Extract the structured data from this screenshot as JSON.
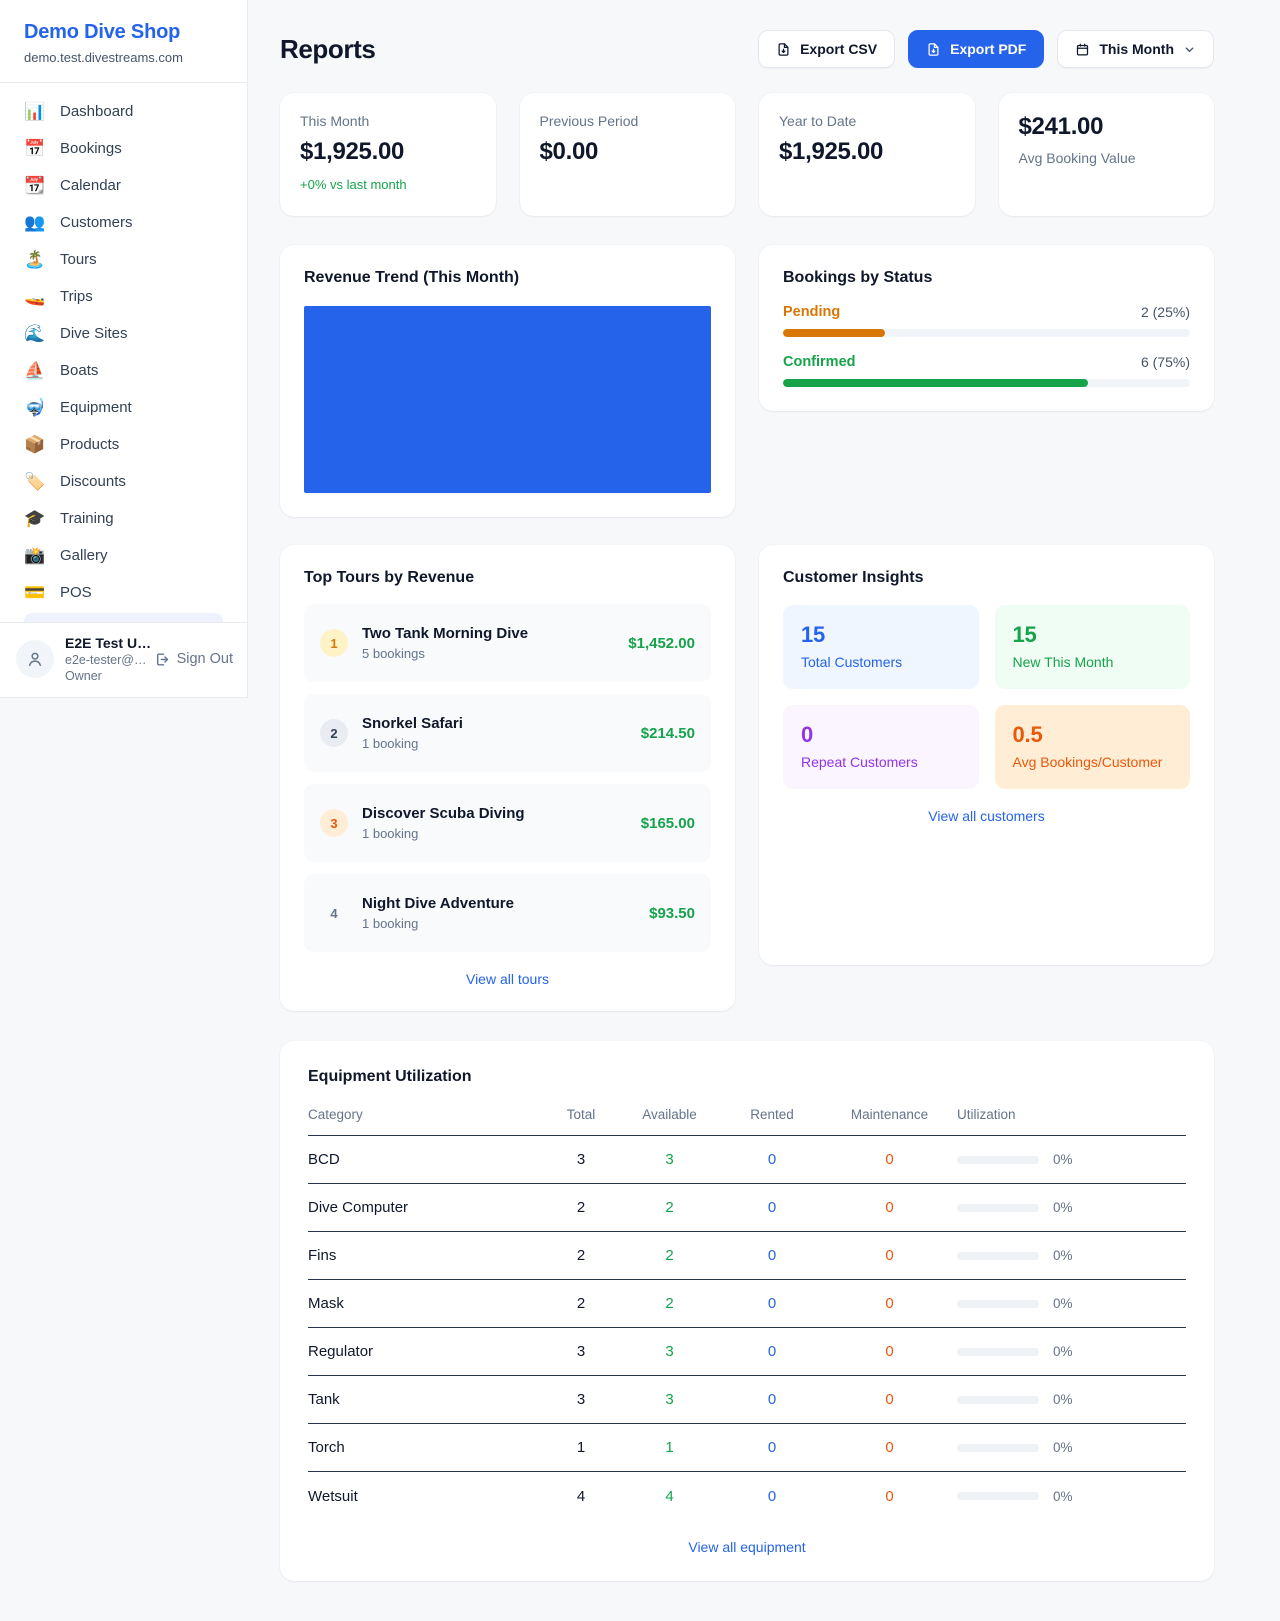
{
  "brand": {
    "name": "Demo Dive Shop",
    "domain": "demo.test.divestreams.com"
  },
  "sidebar": {
    "items": [
      {
        "icon": "📊",
        "label": "Dashboard"
      },
      {
        "icon": "📅",
        "label": "Bookings"
      },
      {
        "icon": "📆",
        "label": "Calendar"
      },
      {
        "icon": "👥",
        "label": "Customers"
      },
      {
        "icon": "🏝️",
        "label": "Tours"
      },
      {
        "icon": "🚤",
        "label": "Trips"
      },
      {
        "icon": "🌊",
        "label": "Dive Sites"
      },
      {
        "icon": "⛵",
        "label": "Boats"
      },
      {
        "icon": "🤿",
        "label": "Equipment"
      },
      {
        "icon": "📦",
        "label": "Products"
      },
      {
        "icon": "🏷️",
        "label": "Discounts"
      },
      {
        "icon": "🎓",
        "label": "Training"
      },
      {
        "icon": "📸",
        "label": "Gallery"
      },
      {
        "icon": "💳",
        "label": "POS"
      }
    ]
  },
  "user": {
    "name": "E2E Test U…",
    "email": "e2e-tester@…",
    "role": "Owner",
    "sign_out": "Sign Out"
  },
  "header": {
    "title": "Reports",
    "export_csv": "Export CSV",
    "export_pdf": "Export PDF",
    "period": "This Month"
  },
  "stats": [
    {
      "label": "This Month",
      "value": "$1,925.00",
      "delta": "+0% vs last month"
    },
    {
      "label": "Previous Period",
      "value": "$0.00"
    },
    {
      "label": "Year to Date",
      "value": "$1,925.00"
    },
    {
      "label": "Avg Booking Value",
      "value": "$241.00"
    }
  ],
  "revenue_trend": {
    "title": "Revenue Trend (This Month)",
    "fill_color": "#2563eb"
  },
  "bookings_by_status": {
    "title": "Bookings by Status",
    "rows": [
      {
        "label": "Pending",
        "value": "2 (25%)",
        "width": "25%",
        "color": "#d97706"
      },
      {
        "label": "Confirmed",
        "value": "6 (75%)",
        "width": "75%",
        "color": "#16a34a"
      }
    ]
  },
  "top_tours": {
    "title": "Top Tours by Revenue",
    "view_all": "View all tours",
    "rows": [
      {
        "rank": "1",
        "name": "Two Tank Morning Dive",
        "bookings": "5 bookings",
        "amount": "$1,452.00",
        "badge_bg": "#fef3c7",
        "badge_color": "#d97706"
      },
      {
        "rank": "2",
        "name": "Snorkel Safari",
        "bookings": "1 booking",
        "amount": "$214.50",
        "badge_bg": "#e9edf3",
        "badge_color": "#334155"
      },
      {
        "rank": "3",
        "name": "Discover Scuba Diving",
        "bookings": "1 booking",
        "amount": "$165.00",
        "badge_bg": "#ffedd5",
        "badge_color": "#ea580c"
      },
      {
        "rank": "4",
        "name": "Night Dive Adventure",
        "bookings": "1 booking",
        "amount": "$93.50",
        "badge_bg": "transparent",
        "badge_color": "#64748b"
      }
    ]
  },
  "customer_insights": {
    "title": "Customer Insights",
    "view_all": "View all customers",
    "tiles": [
      {
        "value": "15",
        "label": "Total Customers",
        "bg": "#eff6ff",
        "color": "#2563eb"
      },
      {
        "value": "15",
        "label": "New This Month",
        "bg": "#f0fdf4",
        "color": "#16a34a"
      },
      {
        "value": "0",
        "label": "Repeat Customers",
        "bg": "#faf5ff",
        "color": "#9333ea"
      },
      {
        "value": "0.5",
        "label": "Avg Bookings/Customer",
        "bg": "#ffedd5",
        "color": "#ea580c"
      }
    ]
  },
  "equipment": {
    "title": "Equipment Utilization",
    "view_all": "View all equipment",
    "columns": [
      "Category",
      "Total",
      "Available",
      "Rented",
      "Maintenance",
      "Utilization"
    ],
    "rows": [
      {
        "category": "BCD",
        "total": "3",
        "available": "3",
        "rented": "0",
        "maintenance": "0",
        "utilization": "0%",
        "bar_width": "0%"
      },
      {
        "category": "Dive Computer",
        "total": "2",
        "available": "2",
        "rented": "0",
        "maintenance": "0",
        "utilization": "0%",
        "bar_width": "0%"
      },
      {
        "category": "Fins",
        "total": "2",
        "available": "2",
        "rented": "0",
        "maintenance": "0",
        "utilization": "0%",
        "bar_width": "0%"
      },
      {
        "category": "Mask",
        "total": "2",
        "available": "2",
        "rented": "0",
        "maintenance": "0",
        "utilization": "0%",
        "bar_width": "0%"
      },
      {
        "category": "Regulator",
        "total": "3",
        "available": "3",
        "rented": "0",
        "maintenance": "0",
        "utilization": "0%",
        "bar_width": "0%"
      },
      {
        "category": "Tank",
        "total": "3",
        "available": "3",
        "rented": "0",
        "maintenance": "0",
        "utilization": "0%",
        "bar_width": "0%"
      },
      {
        "category": "Torch",
        "total": "1",
        "available": "1",
        "rented": "0",
        "maintenance": "0",
        "utilization": "0%",
        "bar_width": "0%"
      },
      {
        "category": "Wetsuit",
        "total": "4",
        "available": "4",
        "rented": "0",
        "maintenance": "0",
        "utilization": "0%",
        "bar_width": "0%"
      }
    ]
  },
  "chart_data": [
    {
      "type": "bar",
      "title": "Revenue Trend (This Month)",
      "categories": [
        "This Month"
      ],
      "values": [
        1925
      ],
      "color": "#2563eb",
      "note": "rendered as a single solid blue bar filling the entire plot area; no axes, gridlines or labels visible"
    },
    {
      "type": "bar",
      "title": "Bookings by Status",
      "categories": [
        "Pending",
        "Confirmed"
      ],
      "values": [
        2,
        6
      ],
      "value_labels": [
        "2 (25%)",
        "6 (75%)"
      ],
      "percentages": [
        25,
        75
      ],
      "colors": [
        "#d97706",
        "#16a34a"
      ],
      "note": "horizontal progress bars"
    },
    {
      "type": "table",
      "title": "Equipment Utilization",
      "columns": [
        "Category",
        "Total",
        "Available",
        "Rented",
        "Maintenance",
        "Utilization"
      ],
      "rows": [
        [
          "BCD",
          3,
          3,
          0,
          0,
          "0%"
        ],
        [
          "Dive Computer",
          2,
          2,
          0,
          0,
          "0%"
        ],
        [
          "Fins",
          2,
          2,
          0,
          0,
          "0%"
        ],
        [
          "Mask",
          2,
          2,
          0,
          0,
          "0%"
        ],
        [
          "Regulator",
          3,
          3,
          0,
          0,
          "0%"
        ],
        [
          "Tank",
          3,
          3,
          0,
          0,
          "0%"
        ],
        [
          "Torch",
          1,
          1,
          0,
          0,
          "0%"
        ],
        [
          "Wetsuit",
          4,
          4,
          0,
          0,
          "0%"
        ]
      ]
    }
  ]
}
